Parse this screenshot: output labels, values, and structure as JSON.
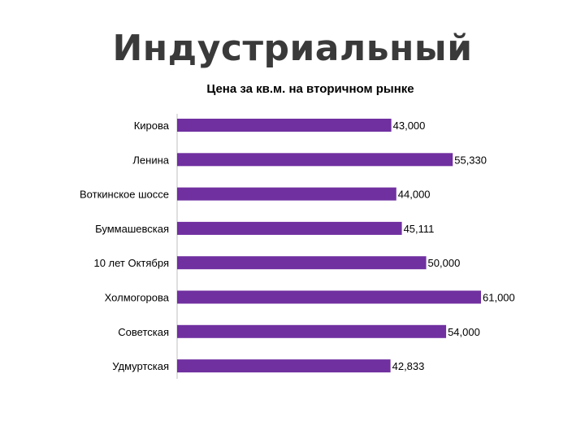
{
  "slide": {
    "title": "Индустриальный"
  },
  "chart_data": {
    "type": "bar",
    "orientation": "horizontal",
    "title": "Цена за кв.м. на вторичном рынке",
    "categories": [
      "Кирова",
      "Ленина",
      "Воткинское шоссе",
      "Буммашевская",
      "10 лет Октября",
      "Холмогорова",
      "Советская",
      "Удмуртская"
    ],
    "values": [
      43000,
      55330,
      44000,
      45111,
      50000,
      61000,
      54000,
      42833
    ],
    "value_labels": [
      "43,000",
      "55,330",
      "44,000",
      "45,111",
      "50,000",
      "61,000",
      "54,000",
      "42,833"
    ],
    "xlim": [
      0,
      61000
    ],
    "bar_color": "#7030A0",
    "grid": false,
    "legend": "none"
  }
}
